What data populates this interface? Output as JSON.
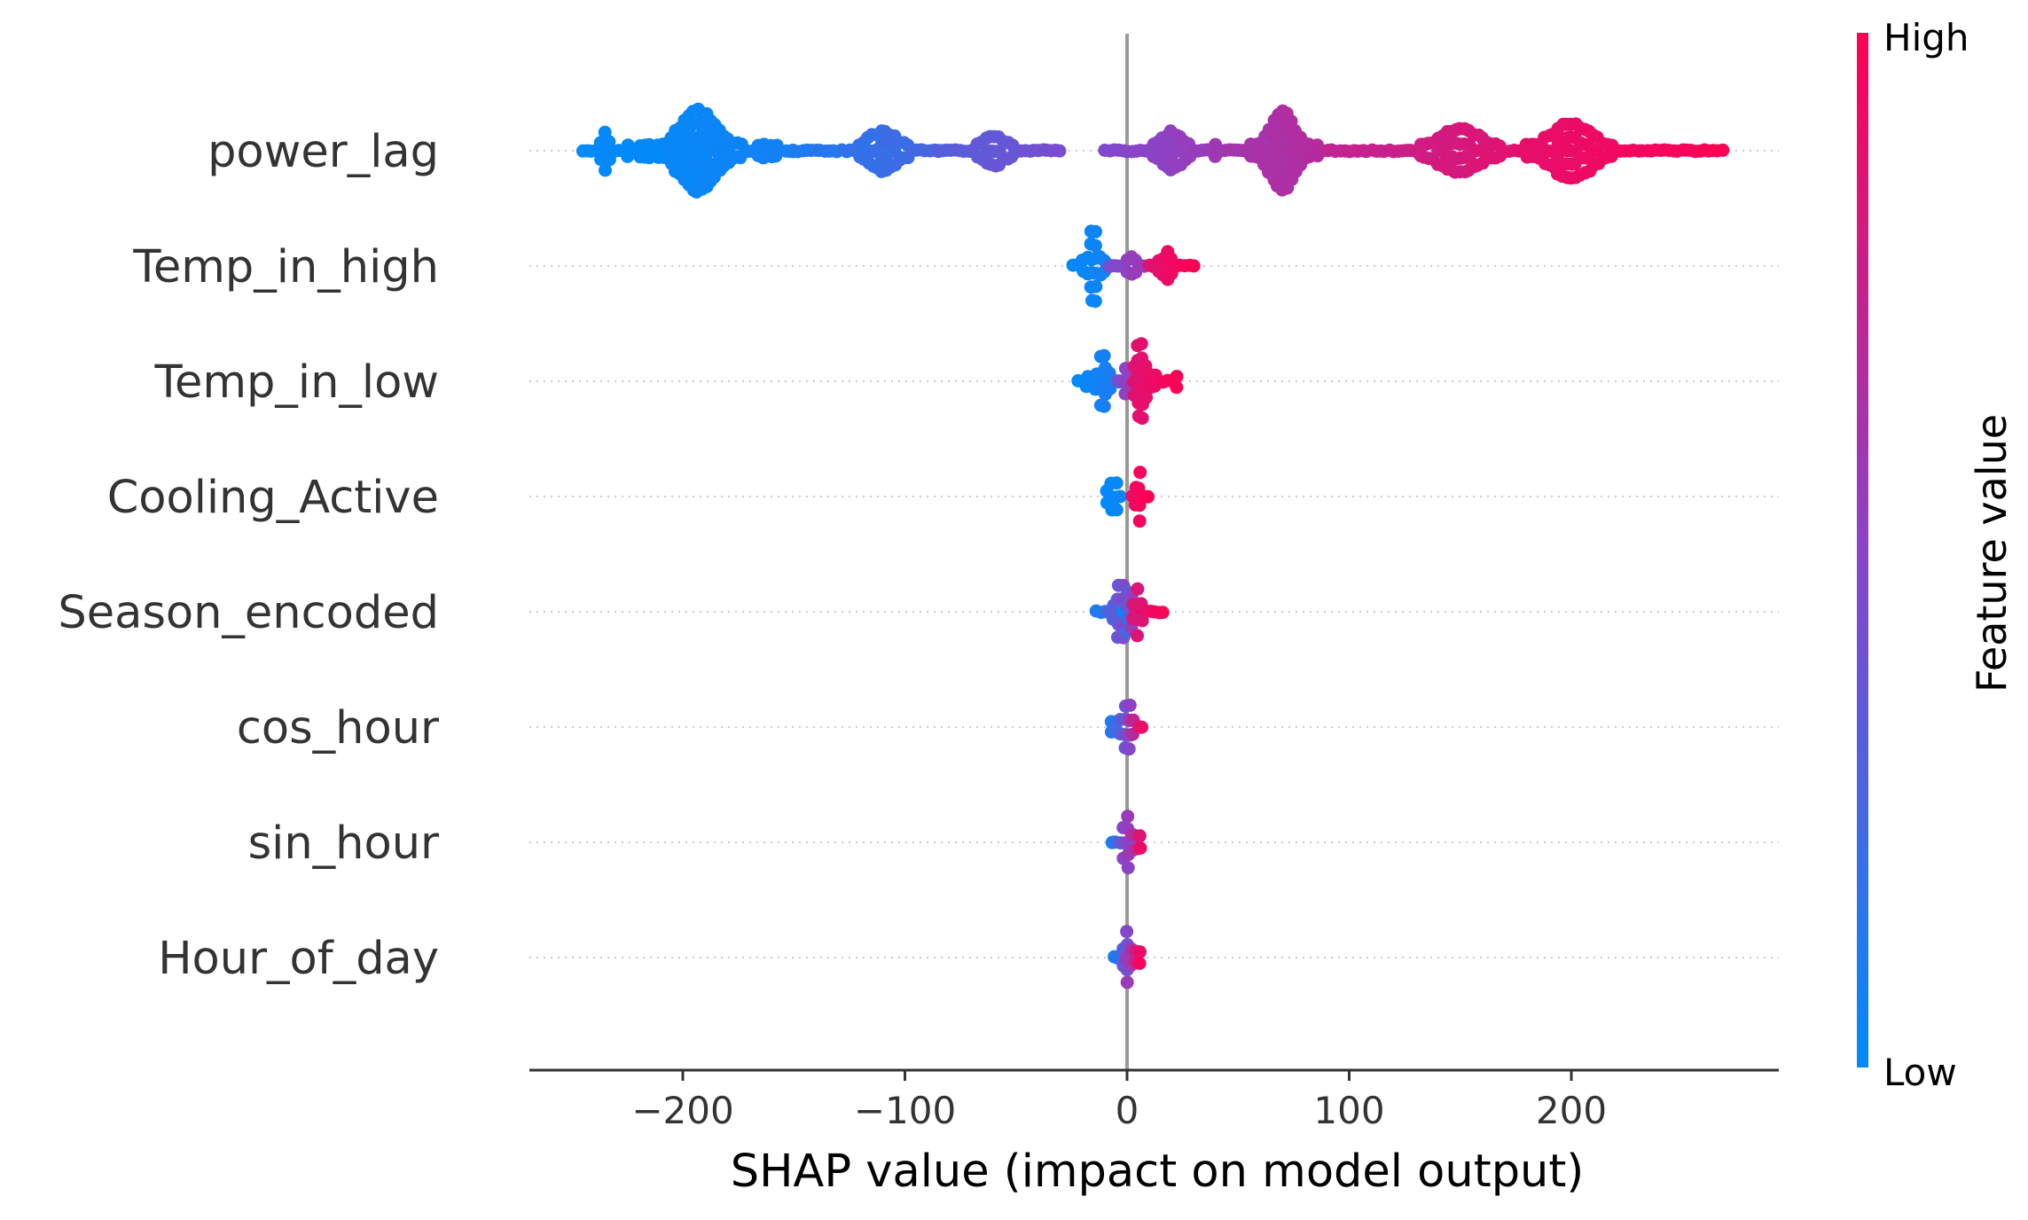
{
  "chart_data": {
    "type": "scatter",
    "subtype": "shap-beeswarm",
    "xlabel": "SHAP value (impact on model output)",
    "xlim": [
      -270,
      293
    ],
    "xticks": [
      {
        "value": -200,
        "label": "−200"
      },
      {
        "value": -100,
        "label": "−100"
      },
      {
        "value": 0,
        "label": "0"
      },
      {
        "value": 100,
        "label": "100"
      },
      {
        "value": 200,
        "label": "200"
      }
    ],
    "colorbar": {
      "title": "Feature value",
      "high_label": "High",
      "low_label": "Low",
      "low_color": "#008bfb",
      "mid_color": "#8a44c8",
      "high_color": "#ff0052"
    },
    "grid_color": "#cccccc",
    "zero_line_color": "#999999",
    "features": [
      {
        "name": "power_lag",
        "clusters": [
          {
            "min": -245,
            "max": -225,
            "low": 0.0,
            "high": 0.03,
            "density": 0.3,
            "peak": -235,
            "peak_value": 0.5
          },
          {
            "min": -225,
            "max": -150,
            "low": 0.0,
            "high": 0.08,
            "density": 1.0,
            "peak": -193,
            "peak_value": 1.0
          },
          {
            "min": -150,
            "max": -85,
            "low": 0.08,
            "high": 0.28,
            "density": 0.55,
            "peak": -110,
            "peak_value": 0.5
          },
          {
            "min": -85,
            "max": -30,
            "low": 0.28,
            "high": 0.45,
            "density": 0.4,
            "peak": -60,
            "peak_value": 0.4
          },
          {
            "min": -10,
            "max": 40,
            "low": 0.45,
            "high": 0.58,
            "density": 0.45,
            "peak": 20,
            "peak_value": 0.5
          },
          {
            "min": 40,
            "max": 90,
            "low": 0.58,
            "high": 0.7,
            "density": 0.85,
            "peak": 70,
            "peak_value": 1.0
          },
          {
            "min": 90,
            "max": 180,
            "low": 0.7,
            "high": 0.9,
            "density": 0.6,
            "peak": 150,
            "peak_value": 0.55
          },
          {
            "min": 180,
            "max": 268,
            "low": 0.88,
            "high": 1.0,
            "density": 0.6,
            "peak": 200,
            "peak_value": 0.7
          }
        ]
      },
      {
        "name": "Temp_in_high",
        "clusters": [
          {
            "min": -24,
            "max": -8,
            "low": 0.0,
            "high": 0.08,
            "density": 1.0,
            "peak": -15,
            "peak_value": 1.0
          },
          {
            "min": -8,
            "max": 10,
            "low": 0.4,
            "high": 0.65,
            "density": 0.5,
            "peak": 2,
            "peak_value": 0.25
          },
          {
            "min": 10,
            "max": 30,
            "low": 0.85,
            "high": 1.0,
            "density": 0.6,
            "peak": 18,
            "peak_value": 0.3
          }
        ]
      },
      {
        "name": "Temp_in_low",
        "clusters": [
          {
            "min": -22,
            "max": -4,
            "low": 0.0,
            "high": 0.12,
            "density": 0.8,
            "peak": -11,
            "peak_value": 0.7
          },
          {
            "min": -4,
            "max": 5,
            "low": 0.4,
            "high": 0.65,
            "density": 0.5,
            "peak": 0,
            "peak_value": 0.3
          },
          {
            "min": 3,
            "max": 22,
            "low": 0.85,
            "high": 1.0,
            "density": 0.9,
            "peak": 6,
            "peak_value": 1.0
          }
        ]
      },
      {
        "name": "Cooling_Active",
        "clusters": [
          {
            "min": -9,
            "max": -3,
            "low": 0.0,
            "high": 0.05,
            "density": 1.0,
            "peak": -6,
            "peak_value": 1.0
          },
          {
            "min": 2,
            "max": 9,
            "low": 0.92,
            "high": 1.0,
            "density": 0.8,
            "peak": 5,
            "peak_value": 0.75
          }
        ]
      },
      {
        "name": "Season_encoded",
        "clusters": [
          {
            "min": -14,
            "max": 0,
            "low": 0.05,
            "high": 0.55,
            "density": 0.7,
            "peak": -3,
            "peak_value": 0.8
          },
          {
            "min": -2,
            "max": 6,
            "low": 0.0,
            "high": 1.0,
            "density": 0.7,
            "peak": 1,
            "peak_value": 0.9
          },
          {
            "min": 3,
            "max": 16,
            "low": 0.8,
            "high": 1.0,
            "density": 0.6,
            "peak": 5,
            "peak_value": 0.6
          }
        ]
      },
      {
        "name": "cos_hour",
        "clusters": [
          {
            "min": -7,
            "max": 7,
            "low": 0.0,
            "high": 1.0,
            "density": 0.9,
            "peak": 0,
            "peak_value": 0.6
          }
        ]
      },
      {
        "name": "sin_hour",
        "clusters": [
          {
            "min": -7,
            "max": 6,
            "low": 0.0,
            "high": 1.0,
            "density": 0.9,
            "peak": 0,
            "peak_value": 0.6
          }
        ]
      },
      {
        "name": "Hour_of_day",
        "clusters": [
          {
            "min": -6,
            "max": 6,
            "low": 0.0,
            "high": 1.0,
            "density": 0.9,
            "peak": 0,
            "peak_value": 0.6
          }
        ]
      }
    ]
  }
}
